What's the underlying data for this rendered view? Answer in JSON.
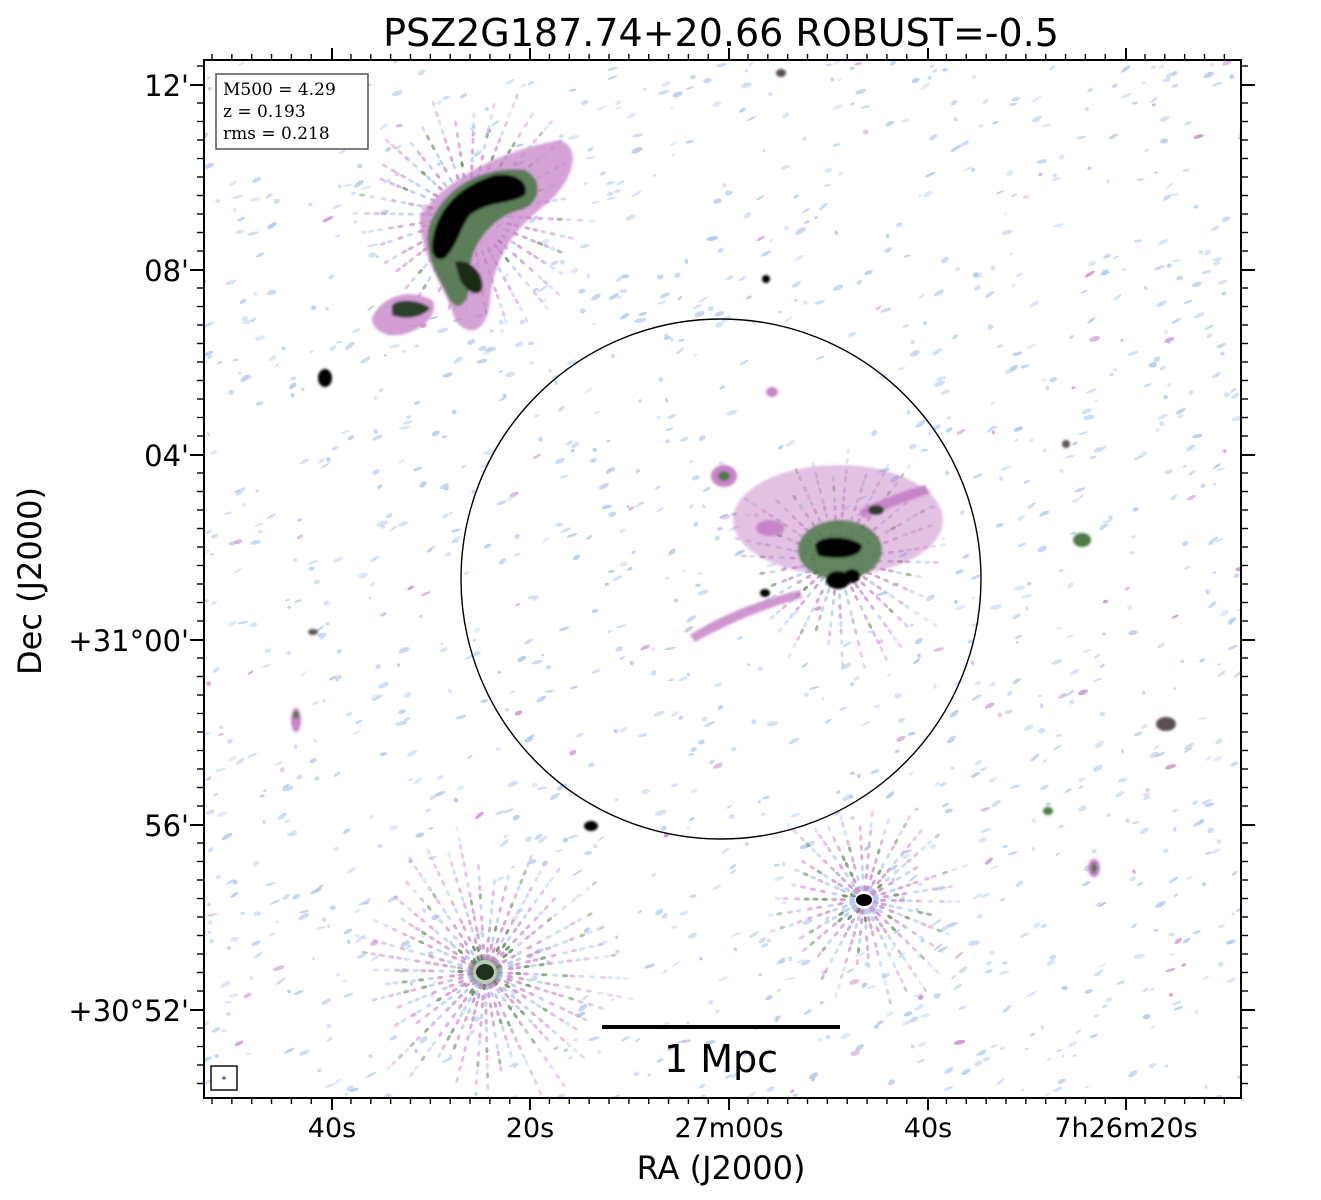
{
  "title": "PSZ2G187.74+20.66 ROBUST=-0.5",
  "xlabel": "RA (J2000)",
  "ylabel": "Dec (J2000)",
  "x_ticks": [
    "40s",
    "20s",
    "27m00s",
    "40s",
    "7h26m20s"
  ],
  "y_ticks": [
    "12'",
    "08'",
    "04'",
    "+31°00'",
    "56'",
    "+30°52'"
  ],
  "info": {
    "mass": "M500 = 4.29",
    "redshift": "z = 0.193",
    "rms": "rms = 0.218"
  },
  "scale_bar_label": "1 Mpc",
  "colors": {
    "noise": "#a9c4ec",
    "faint": "#c784c8",
    "mid": "#4f7a4a",
    "bright": "#000000"
  }
}
